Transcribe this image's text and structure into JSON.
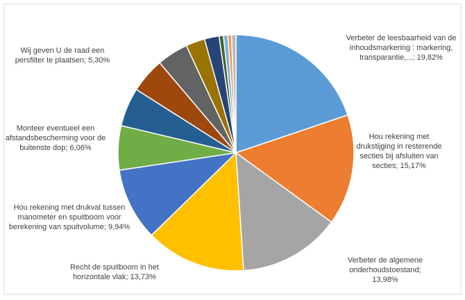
{
  "chart_data": {
    "type": "pie",
    "categories": [
      "Verbeter de leesbaarheid van de inhoudsmarkering : markering, transparantie,...;",
      "Hou rekening met drukstijging in resterende secties bij afsluiten van secties;",
      "Verbeter de algemene onderhoudstoestand;",
      "Recht de spuitboom in het horizontale vlak;",
      "Hou rekening met drukval tussen manometer en spuitboom voor berekening van spuitvolume;",
      "Monteer eventueel een afstandsbescherming voor de buitenste dop;",
      "Wij geven U de raad een persfilter te plaatsen;",
      null,
      null,
      null,
      null,
      null,
      null,
      null,
      null
    ],
    "values": [
      19.82,
      15.17,
      13.98,
      13.73,
      9.94,
      6.06,
      5.3,
      4.8,
      4.3,
      2.6,
      2.0,
      0.6,
      0.6,
      0.5,
      0.6
    ],
    "value_labels": [
      "19,82%",
      "15,17%",
      "13,98%",
      "13,73%",
      "9,94%",
      "6,06%",
      "5,30%",
      null,
      null,
      null,
      null,
      null,
      null,
      null,
      null
    ],
    "colors": [
      "#5b9bd5",
      "#ed7d31",
      "#a5a5a5",
      "#ffc000",
      "#4472c4",
      "#70ad47",
      "#255e91",
      "#9e480e",
      "#636363",
      "#997300",
      "#264478",
      "#43682b",
      "#7cafdd",
      "#f1975a",
      "#b7b7b7"
    ]
  }
}
